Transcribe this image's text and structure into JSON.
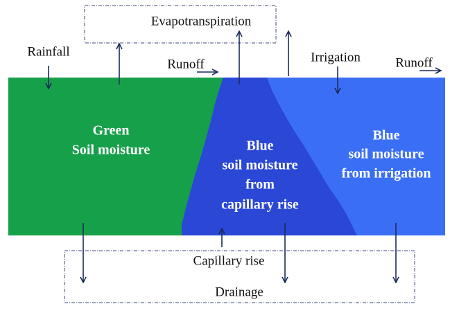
{
  "top_box": {
    "label": "Evapotranspiration"
  },
  "inputs": {
    "rainfall": "Rainfall",
    "runoff_left": "Runoff",
    "irrigation": "Irrigation",
    "runoff_right": "Runoff"
  },
  "regions": {
    "green": [
      "Green",
      "Soil moisture"
    ],
    "capillary": [
      "Blue",
      "soil moisture",
      "from",
      "capillary rise"
    ],
    "irrigation": [
      "Blue",
      "soil moisture",
      "from irrigation"
    ]
  },
  "capillary_rise": "Capillary rise",
  "bottom_box": {
    "label": "Drainage"
  }
}
